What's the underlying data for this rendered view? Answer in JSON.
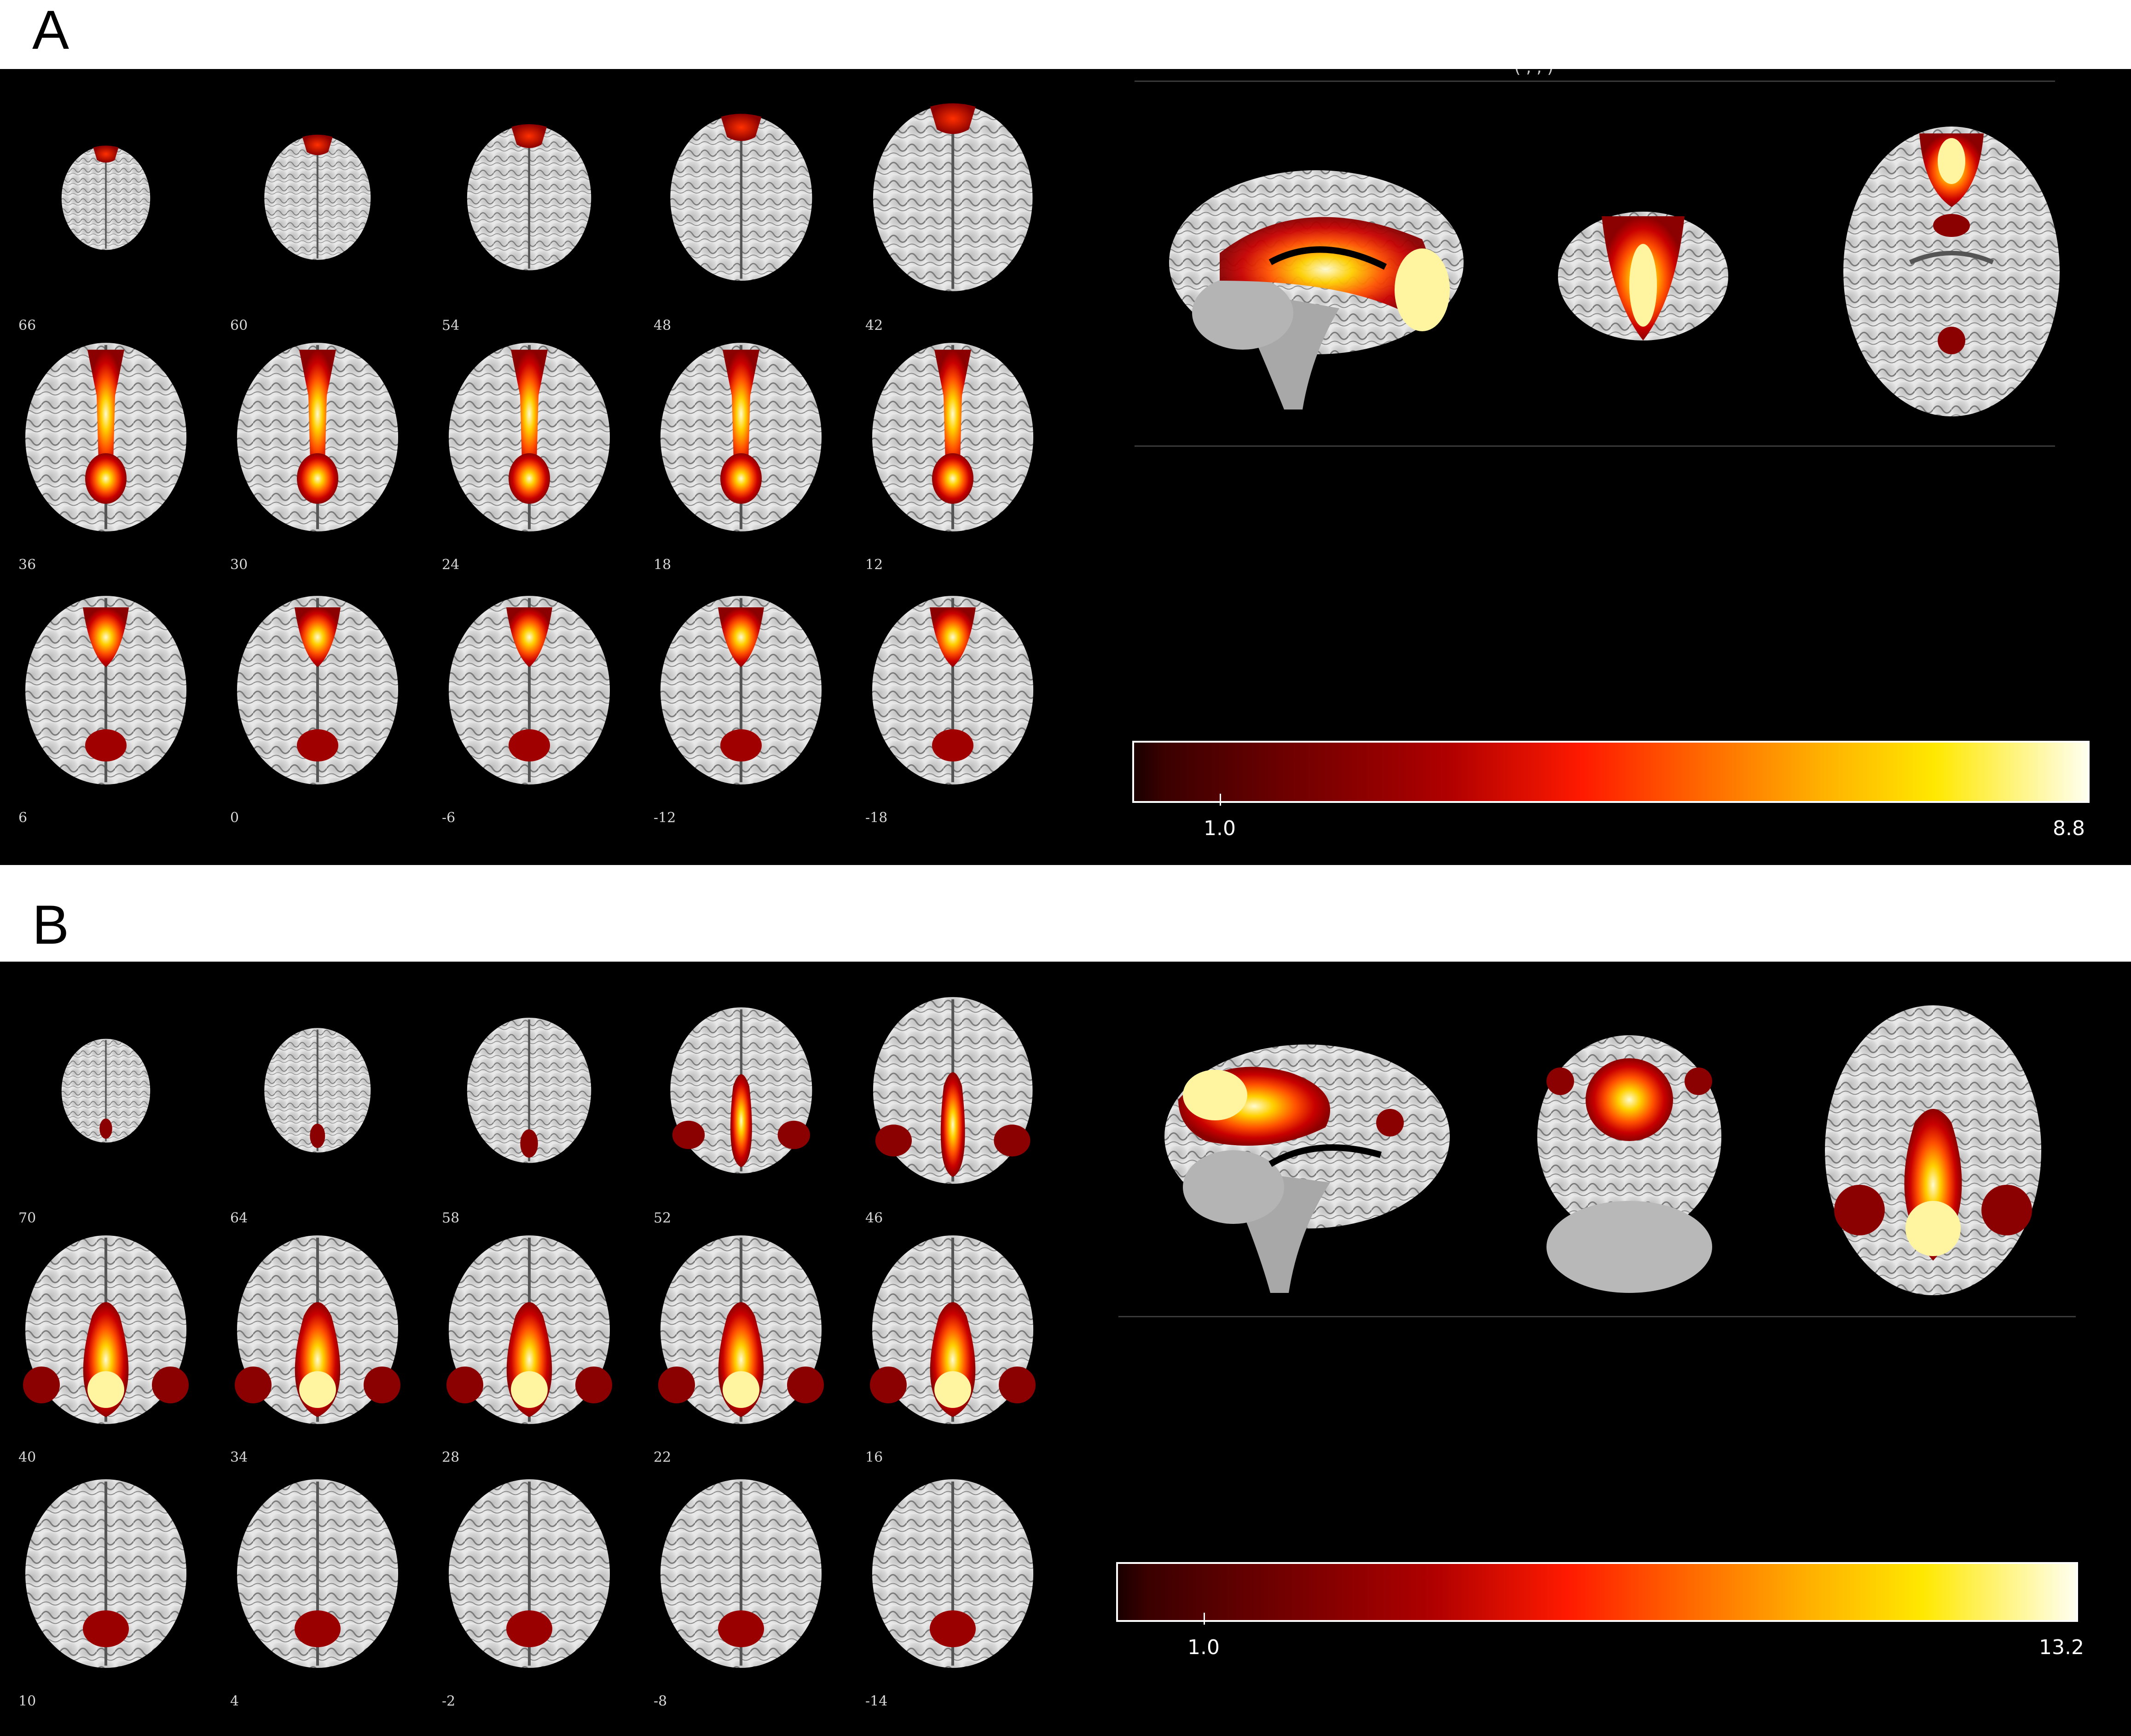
{
  "panel_a": {
    "letter": "A",
    "slice_labels": [
      "66",
      "60",
      "54",
      "48",
      "42",
      "36",
      "30",
      "24",
      "18",
      "12",
      "6",
      "0",
      "-6",
      "-12",
      "-18"
    ],
    "colorbar": {
      "min_label": "1.0",
      "max_label": "8.8",
      "colormap": "hot"
    },
    "top_text": "(    ,    ,    )"
  },
  "panel_b": {
    "letter": "B",
    "slice_labels": [
      "70",
      "64",
      "58",
      "52",
      "46",
      "40",
      "34",
      "28",
      "22",
      "16",
      "10",
      "4",
      "-2",
      "-8",
      "-14"
    ],
    "colorbar": {
      "min_label": "1.0",
      "max_label": "13.2",
      "colormap": "hot"
    }
  },
  "colors": {
    "background": "#000000",
    "brain": "#cfcfcf",
    "activation_low": "#8b0000",
    "activation_high": "#fffbd0"
  }
}
